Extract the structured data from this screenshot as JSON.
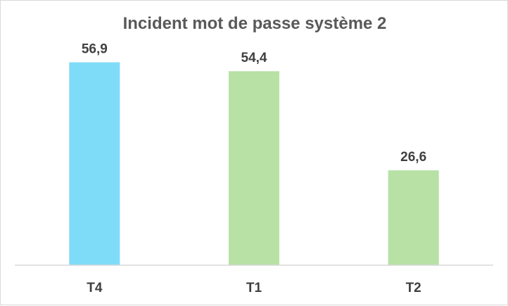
{
  "chart_data": {
    "type": "bar",
    "title": "Incident mot de passe système 2",
    "categories": [
      "T4",
      "T1",
      "T2"
    ],
    "values": [
      56.9,
      54.4,
      26.6
    ],
    "value_labels": [
      "56,9",
      "54,4",
      "26,6"
    ],
    "bar_colors": [
      "#7fdcf8",
      "#b7e1a5",
      "#b7e1a5"
    ],
    "ylim": [
      0,
      58
    ],
    "grid": false,
    "legend": "none",
    "xlabel": "",
    "ylabel": ""
  }
}
